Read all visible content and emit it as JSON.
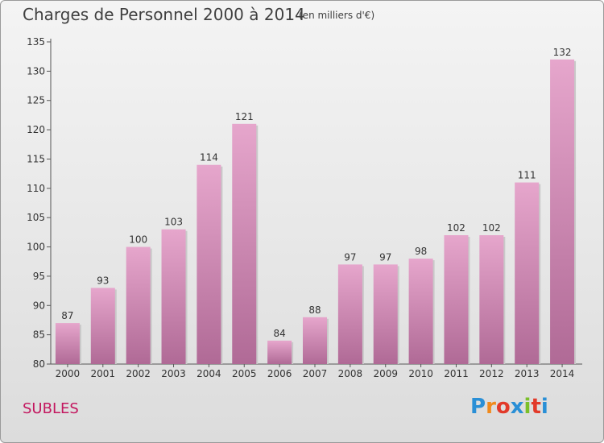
{
  "header": {
    "title": "Charges de Personnel 2000 à 2014",
    "subtitle": "(en milliers d'€)"
  },
  "footer": {
    "place": "SUBLES",
    "logo_text": "Proxiti",
    "logo_colors": [
      "#2a8fd6",
      "#f08a1c",
      "#e23a2a",
      "#2a8fd6",
      "#7bbf2a",
      "#e23a2a",
      "#2a8fd6"
    ]
  },
  "chart_data": {
    "type": "bar",
    "title": "Charges de Personnel 2000 à 2014",
    "subtitle": "(en milliers d'€)",
    "xlabel": "",
    "ylabel": "",
    "categories": [
      "2000",
      "2001",
      "2002",
      "2003",
      "2004",
      "2005",
      "2006",
      "2007",
      "2008",
      "2009",
      "2010",
      "2011",
      "2012",
      "2013",
      "2014"
    ],
    "values": [
      87,
      93,
      100,
      103,
      114,
      121,
      84,
      88,
      97,
      97,
      98,
      102,
      102,
      111,
      132
    ],
    "ylim": [
      80,
      135
    ],
    "yticks": [
      80,
      85,
      90,
      95,
      100,
      105,
      110,
      115,
      120,
      125,
      130,
      135
    ],
    "grid": false,
    "data_labels": true,
    "bar_color_top": "#e6a6cc",
    "bar_color_bottom": "#b06a96"
  }
}
